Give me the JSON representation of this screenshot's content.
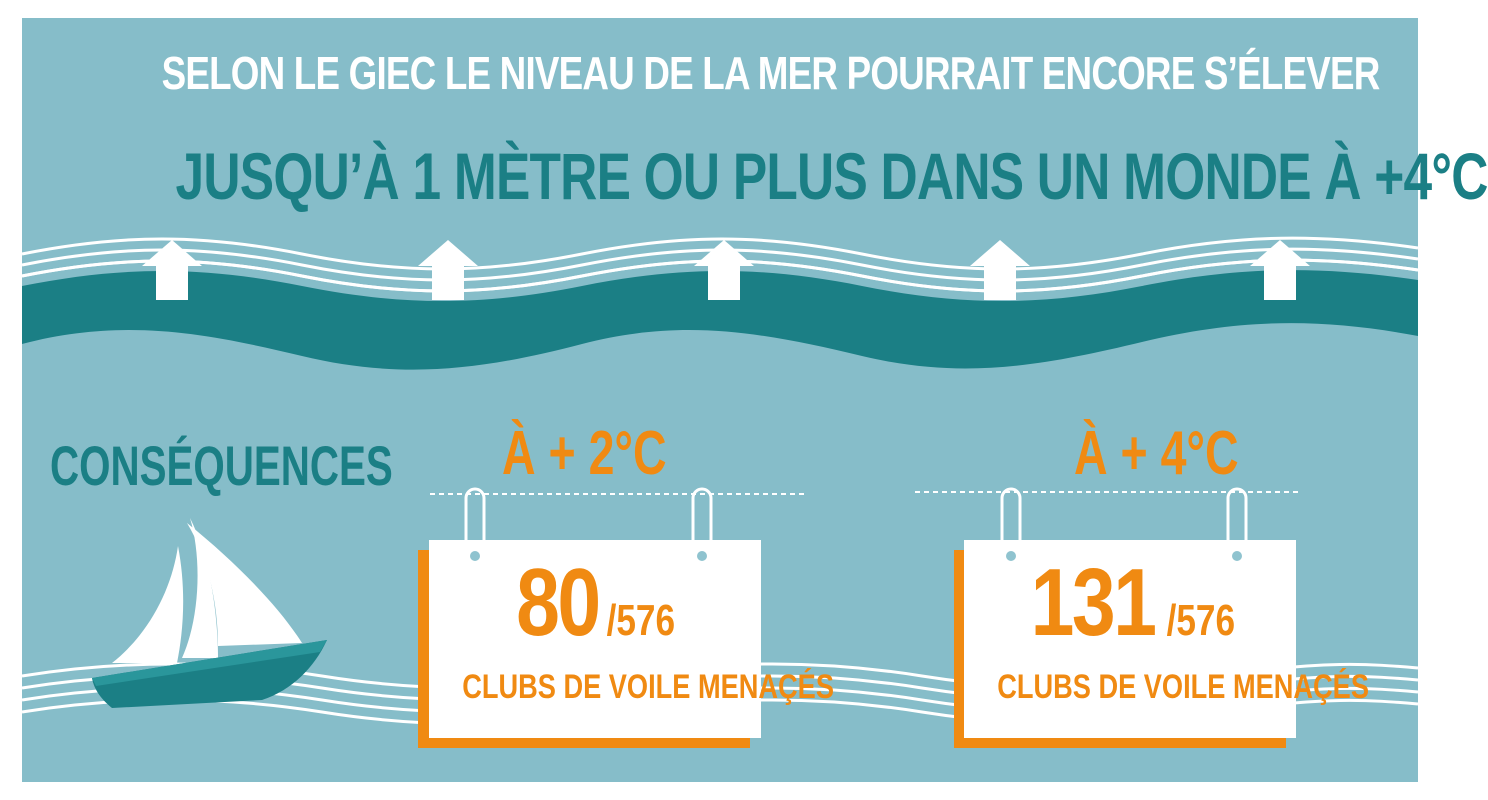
{
  "header": {
    "line1": "SELON LE GIEC LE NIVEAU DE LA MER POURRAIT ENCORE S’ÉLEVER",
    "line2": "JUSQU’À 1 MÈTRE OU PLUS DANS UN MONDE À +4°C"
  },
  "consequences": {
    "title": "CONSÉQUENCES"
  },
  "scenarios": [
    {
      "label": "À + 2°C",
      "threatened": 80,
      "total_label": "/576",
      "caption": "CLUBS DE VOILE MENAÇÉS"
    },
    {
      "label": "À + 4°C",
      "threatened": 131,
      "total_label": "/576",
      "caption": "CLUBS DE VOILE MENAÇÉS"
    }
  ],
  "colors": {
    "background": "#86bdc9",
    "teal": "#1b7f85",
    "orange": "#f08a12",
    "white": "#ffffff"
  },
  "icons": {
    "arrows": "up-arrow-icon",
    "boat": "sailboat-icon"
  }
}
